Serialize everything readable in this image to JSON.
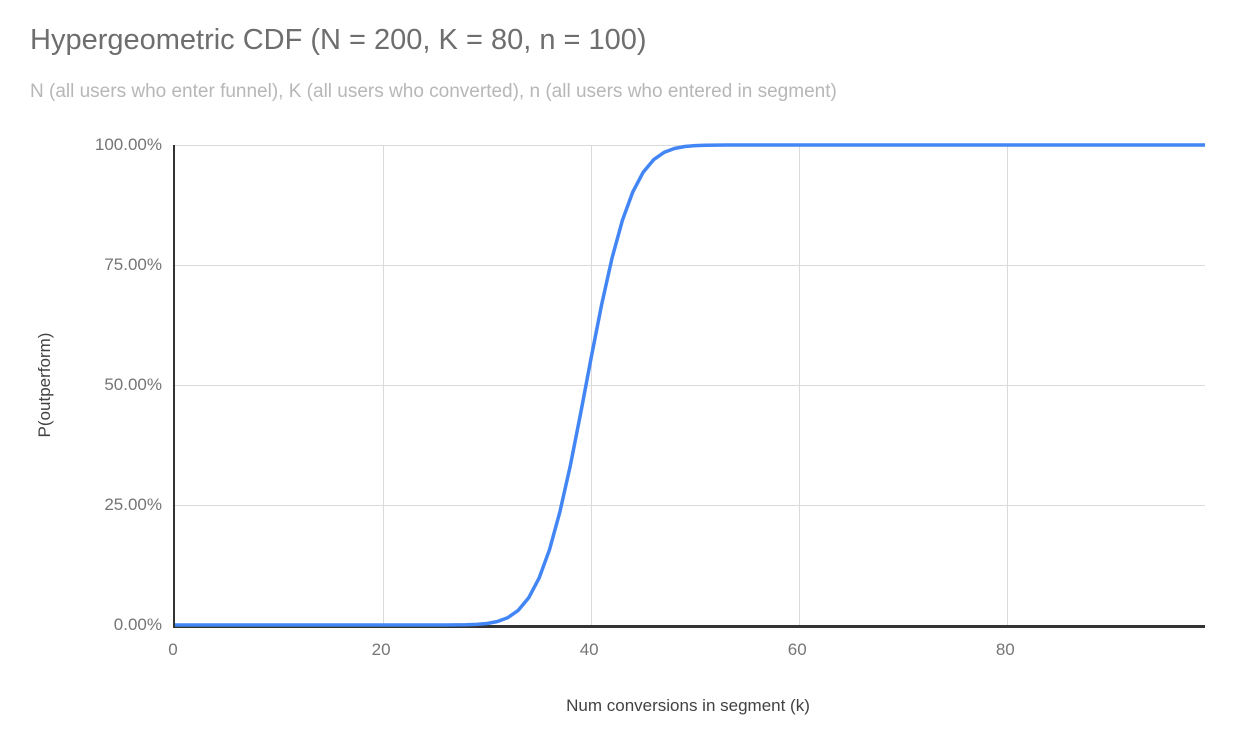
{
  "chart": {
    "title": "Hypergeometric CDF (N = 200, K = 80, n = 100)",
    "subtitle": "N (all users who enter funnel), K (all users who converted), n (all users who entered in segment)",
    "x_axis_title": "Num conversions in segment (k)",
    "y_axis_title": "P(outperform)",
    "colors": {
      "line": "#4285f4",
      "gridline": "#dadada",
      "axis_line": "#333333",
      "title_text": "#6e6e6e",
      "subtitle_text": "#b7b7b7",
      "tick_label_text": "#757575",
      "axis_title_text": "#424242"
    }
  },
  "chart_data": {
    "type": "line",
    "title": "Hypergeometric CDF (N = 200, K = 80, n = 100)",
    "subtitle": "N (all users who enter funnel), K (all users who converted), n (all users who entered in segment)",
    "xlabel": "Num conversions in segment (k)",
    "ylabel": "P(outperform)",
    "params": {
      "N": 200,
      "K": 80,
      "n": 100
    },
    "x_start": 0,
    "x_end": 99,
    "x_ticks": [
      0,
      20,
      40,
      60,
      80
    ],
    "x_tick_labels": [
      "0",
      "20",
      "40",
      "60",
      "80"
    ],
    "y_ticks_percent": [
      0,
      25,
      50,
      75,
      100
    ],
    "y_tick_labels": [
      "0.00%",
      "25.00%",
      "50.00%",
      "75.00%",
      "100.00%"
    ],
    "ylim_percent": [
      0,
      100
    ],
    "grid": true,
    "legend": "none",
    "line_smooth": true,
    "series": [
      {
        "name": "P(outperform)",
        "values": [
          0,
          0,
          0,
          0,
          0,
          0,
          0,
          0,
          0,
          0,
          0,
          0,
          0,
          0,
          0,
          0,
          0,
          0,
          0,
          0,
          0,
          0,
          0,
          0,
          0,
          0,
          0,
          0.0002,
          0.0005,
          0.0012,
          0.0031,
          0.0072,
          0.0154,
          0.0307,
          0.0567,
          0.0977,
          0.1568,
          0.2358,
          0.3329,
          0.4428,
          0.5572,
          0.6671,
          0.7642,
          0.8432,
          0.9023,
          0.9433,
          0.9693,
          0.9846,
          0.9928,
          0.9969,
          0.9987,
          0.9995,
          0.9998,
          0.9999,
          1,
          1,
          1,
          1,
          1,
          1,
          1,
          1,
          1,
          1,
          1,
          1,
          1,
          1,
          1,
          1,
          1,
          1,
          1,
          1,
          1,
          1,
          1,
          1,
          1,
          1,
          1,
          1,
          1,
          1,
          1,
          1,
          1,
          1,
          1,
          1,
          1,
          1,
          1,
          1,
          1,
          1,
          1,
          1,
          1,
          1
        ]
      }
    ]
  }
}
